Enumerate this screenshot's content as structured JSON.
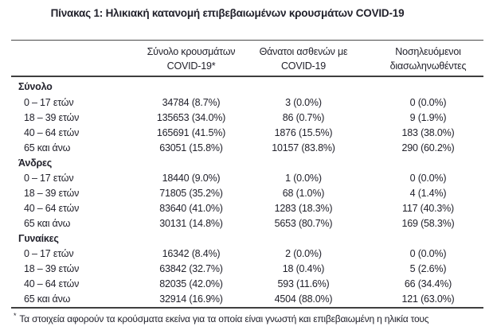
{
  "title": "Πίνακας 1: Ηλικιακή κατανομή επιβεβαιωμένων κρουσμάτων COVID-19",
  "table": {
    "columns": {
      "cases": {
        "line1": "Σύνολο κρουσμάτων",
        "line2": "COVID-19*"
      },
      "deaths": {
        "line1": "Θάνατοι ασθενών με",
        "line2": "COVID-19"
      },
      "intubated": {
        "line1": "Νοσηλευόμενοι",
        "line2": "διασωληνωθέντες"
      }
    },
    "sections": [
      {
        "label": "Σύνολο",
        "rows": [
          {
            "label": "0 – 17 ετών",
            "cases": "34784 (8.7%)",
            "deaths": "3 (0.0%)",
            "intubated": "0 (0.0%)"
          },
          {
            "label": "18 – 39 ετών",
            "cases": "135653 (34.0%)",
            "deaths": "86 (0.7%)",
            "intubated": "9 (1.9%)"
          },
          {
            "label": "40 – 64 ετών",
            "cases": "165691 (41.5%)",
            "deaths": "1876 (15.5%)",
            "intubated": "183 (38.0%)"
          },
          {
            "label": "65 και άνω",
            "cases": "63051 (15.8%)",
            "deaths": "10157 (83.8%)",
            "intubated": "290 (60.2%)"
          }
        ]
      },
      {
        "label": "Άνδρες",
        "rows": [
          {
            "label": "0 – 17 ετών",
            "cases": "18440 (9.0%)",
            "deaths": "1 (0.0%)",
            "intubated": "0 (0.0%)"
          },
          {
            "label": "18 – 39 ετών",
            "cases": "71805 (35.2%)",
            "deaths": "68 (1.0%)",
            "intubated": "4 (1.4%)"
          },
          {
            "label": "40 – 64 ετών",
            "cases": "83640 (41.0%)",
            "deaths": "1283 (18.3%)",
            "intubated": "117 (40.3%)"
          },
          {
            "label": "65 και άνω",
            "cases": "30131 (14.8%)",
            "deaths": "5653 (80.7%)",
            "intubated": "169 (58.3%)"
          }
        ]
      },
      {
        "label": "Γυναίκες",
        "rows": [
          {
            "label": "0 – 17 ετών",
            "cases": "16342 (8.4%)",
            "deaths": "2 (0.0%)",
            "intubated": "0 (0.0%)"
          },
          {
            "label": "18 – 39 ετών",
            "cases": "63842 (32.7%)",
            "deaths": "18 (0.4%)",
            "intubated": "5 (2.6%)"
          },
          {
            "label": "40 – 64 ετών",
            "cases": "82035 (42.0%)",
            "deaths": "593 (11.6%)",
            "intubated": "66 (34.4%)"
          },
          {
            "label": "65 και άνω",
            "cases": "32914 (16.9%)",
            "deaths": "4504 (88.0%)",
            "intubated": "121 (63.0%)"
          }
        ]
      }
    ]
  },
  "footnote": {
    "marker": "*",
    "text": "Τα στοιχεία αφορούν τα κρούσματα εκείνα για τα οποία είναι γνωστή και επιβεβαιωμένη η ηλικία τους"
  },
  "colors": {
    "text": "#22222c",
    "rule": "#3f3f3f",
    "background": "#ffffff"
  }
}
